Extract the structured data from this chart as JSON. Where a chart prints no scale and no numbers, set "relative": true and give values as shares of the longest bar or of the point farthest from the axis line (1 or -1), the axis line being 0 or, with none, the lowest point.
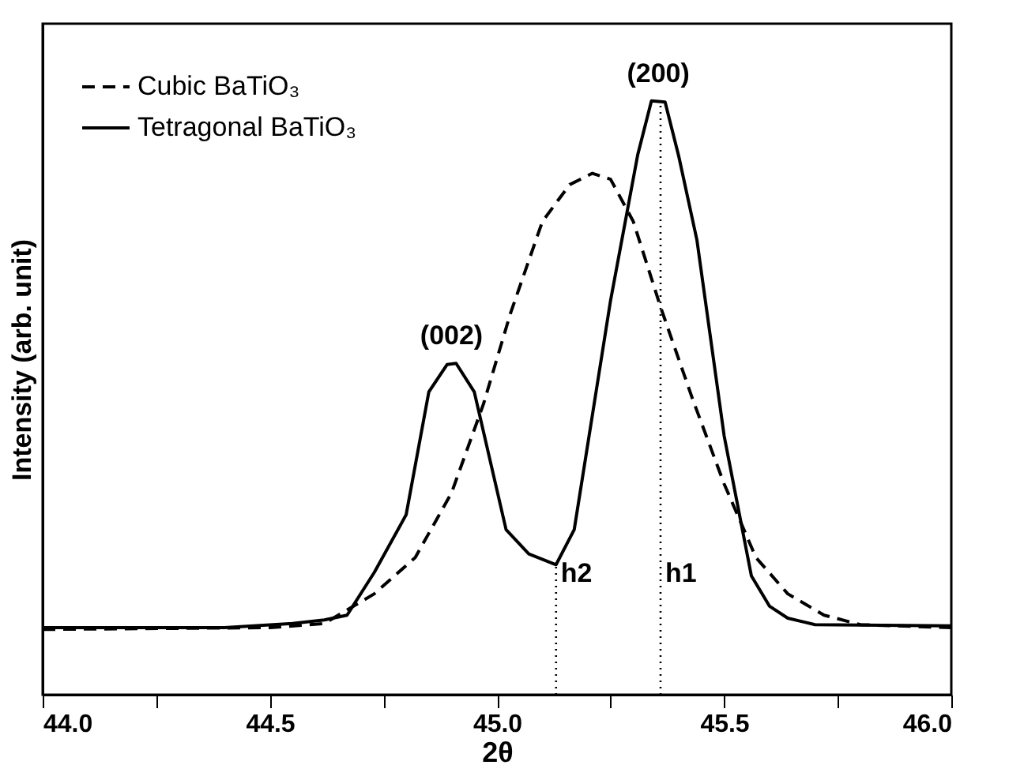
{
  "chart_data": {
    "type": "line",
    "relative": true,
    "xlabel": "2θ",
    "ylabel": "Intensity (arb. unit)",
    "xlim": [
      44.0,
      46.0
    ],
    "xticks": [
      {
        "value": 44.0,
        "label": "44.0"
      },
      {
        "value": 44.25,
        "label": null
      },
      {
        "value": 44.5,
        "label": "44.5"
      },
      {
        "value": 44.75,
        "label": null
      },
      {
        "value": 45.0,
        "label": "45.0"
      },
      {
        "value": 45.25,
        "label": null
      },
      {
        "value": 45.5,
        "label": "45.5"
      },
      {
        "value": 45.75,
        "label": null
      },
      {
        "value": 46.0,
        "label": "46.0"
      }
    ],
    "legend": "top left",
    "grid": false,
    "marker": "none",
    "series": [
      {
        "name": "Cubic BaTiO₃",
        "color": "#000000",
        "line_style": "dashed",
        "x": [
          44.0,
          44.5,
          44.62,
          44.73,
          44.82,
          44.9,
          44.97,
          45.03,
          45.1,
          45.16,
          45.21,
          45.25,
          45.3,
          45.36,
          45.43,
          45.5,
          45.57,
          45.64,
          45.72,
          45.8,
          46.0
        ],
        "values": [
          0.11,
          0.113,
          0.12,
          0.17,
          0.231,
          0.34,
          0.489,
          0.643,
          0.797,
          0.859,
          0.878,
          0.868,
          0.797,
          0.653,
          0.499,
          0.355,
          0.231,
          0.17,
          0.134,
          0.118,
          0.113
        ]
      },
      {
        "name": "Tetragonal BaTiO₃",
        "color": "#000000",
        "line_style": "solid",
        "x": [
          44.0,
          44.4,
          44.55,
          44.62,
          44.67,
          44.73,
          44.8,
          44.85,
          44.89,
          44.91,
          44.95,
          45.02,
          45.07,
          45.13,
          45.17,
          45.25,
          45.31,
          45.34,
          45.37,
          45.4,
          45.44,
          45.5,
          45.56,
          45.6,
          45.64,
          45.7,
          46.0
        ],
        "values": [
          0.113,
          0.113,
          0.12,
          0.126,
          0.134,
          0.206,
          0.303,
          0.51,
          0.556,
          0.558,
          0.51,
          0.278,
          0.237,
          0.219,
          0.278,
          0.664,
          0.91,
          1.0,
          0.998,
          0.907,
          0.766,
          0.436,
          0.2,
          0.149,
          0.129,
          0.118,
          0.116
        ]
      }
    ],
    "ref_lines": [
      {
        "axis": "x",
        "value": 45.13,
        "label": "h2",
        "line_style": "dotted"
      },
      {
        "axis": "x",
        "value": 45.36,
        "label": "h1",
        "line_style": "dotted"
      }
    ],
    "annotations": [
      {
        "text": "(002)",
        "x": 44.9,
        "y": 0.558
      },
      {
        "text": "(200)",
        "x": 45.355,
        "y": 1.0
      }
    ]
  }
}
